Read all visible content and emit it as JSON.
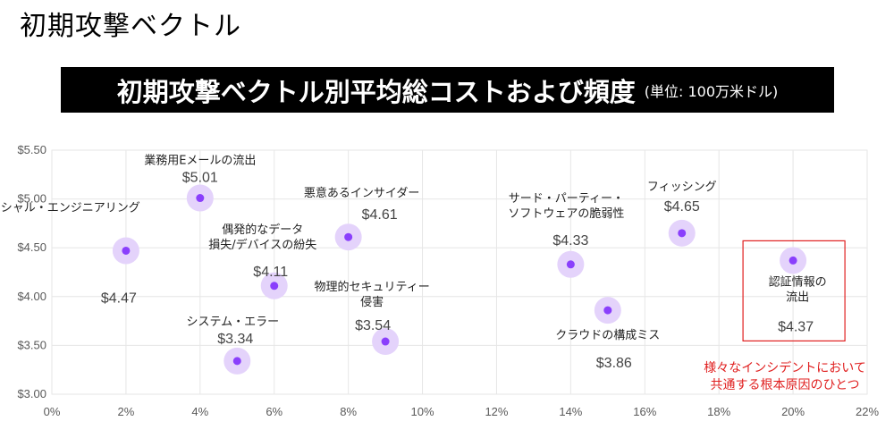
{
  "page": {
    "title": "初期攻撃ベクトル",
    "banner_title": "初期攻撃ベクトル別平均総コストおよび頻度",
    "banner_unit": "(単位: 100万米ドル)"
  },
  "chart_data": {
    "type": "scatter",
    "title": "初期攻撃ベクトル別平均総コストおよび頻度",
    "xlabel": "",
    "ylabel": "",
    "x_ticks": [
      "0%",
      "2%",
      "4%",
      "6%",
      "8%",
      "10%",
      "12%",
      "14%",
      "16%",
      "18%",
      "20%",
      "22%"
    ],
    "y_ticks": [
      "$3.00",
      "$3.50",
      "$4.00",
      "$4.50",
      "$5.00",
      "$5.50"
    ],
    "xlim": [
      0,
      22
    ],
    "ylim": [
      3.0,
      5.5
    ],
    "grid": true,
    "points": [
      {
        "name": "ソーシャル・エンジニアリング",
        "x": 2,
        "y": 4.47,
        "value_label": "$4.47"
      },
      {
        "name": "業務用Eメールの流出",
        "x": 4,
        "y": 5.01,
        "value_label": "$5.01"
      },
      {
        "name": "システム・エラー",
        "x": 5,
        "y": 3.34,
        "value_label": "$3.34"
      },
      {
        "name": "偶発的なデータ\n損失/デバイスの紛失",
        "x": 6,
        "y": 4.11,
        "value_label": "$4.11"
      },
      {
        "name": "悪意あるインサイダー",
        "x": 8,
        "y": 4.61,
        "value_label": "$4.61"
      },
      {
        "name": "物理的セキュリティー\n侵害",
        "x": 9,
        "y": 3.54,
        "value_label": "$3.54"
      },
      {
        "name": "サード・パーティー・\nソフトウェアの脆弱性",
        "x": 14,
        "y": 4.33,
        "value_label": "$4.33"
      },
      {
        "name": "クラウドの構成ミス",
        "x": 15,
        "y": 3.86,
        "value_label": "$3.86"
      },
      {
        "name": "フィッシング",
        "x": 17,
        "y": 4.65,
        "value_label": "$4.65"
      },
      {
        "name": "認証情報の\n流出",
        "x": 20,
        "y": 4.37,
        "value_label": "$4.37"
      }
    ],
    "highlight": {
      "point": "認証情報の\n流出"
    },
    "annotation": "様々なインシデントにおいて\n共通する根本原因のひとつ"
  },
  "colors": {
    "marker": "#8a3ffc",
    "halo": "#e4d3fb",
    "highlight_box": "#e02020",
    "annotation": "#e02020",
    "grid": "#e6e6e6",
    "banner_bg": "#000000"
  }
}
